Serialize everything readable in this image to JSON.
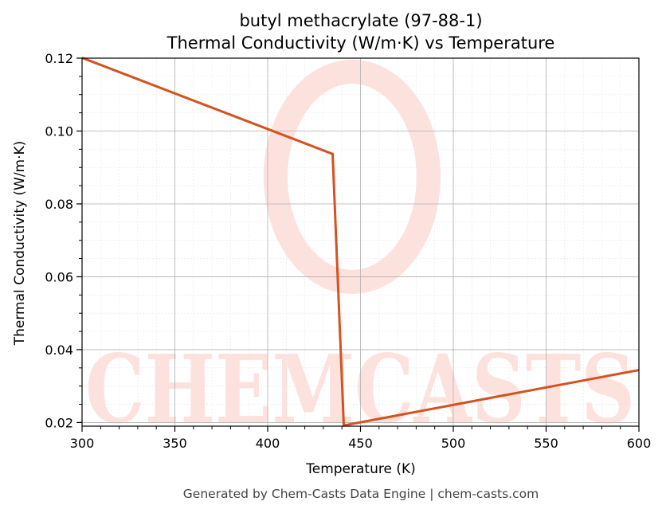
{
  "chart_data": {
    "type": "line",
    "title": "butyl methacrylate (97-88-1)",
    "subtitle": "Thermal Conductivity (W/m·K) vs Temperature",
    "xlabel": "Temperature (K)",
    "ylabel": "Thermal Conductivity (W/m·K)",
    "xlim": [
      300,
      600
    ],
    "ylim": [
      0.019,
      0.12
    ],
    "xticks": [
      300,
      350,
      400,
      450,
      500,
      550,
      600
    ],
    "yticks": [
      0.02,
      0.04,
      0.06,
      0.08,
      0.1,
      0.12
    ],
    "grid": true,
    "series": [
      {
        "color": "#d4521f",
        "x": [
          300,
          435,
          441,
          600
        ],
        "y": [
          0.1201,
          0.0937,
          0.0192,
          0.0344
        ]
      }
    ]
  },
  "watermark": {
    "text": "CHEMCASTS",
    "color": "#fde1dc"
  },
  "footer": "Generated by Chem-Casts Data Engine | chem-casts.com"
}
